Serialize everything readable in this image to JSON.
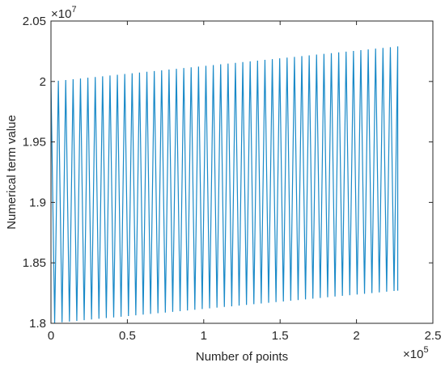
{
  "chart_data": {
    "type": "line",
    "title": "",
    "xlabel": "Number of points",
    "ylabel": "Numerical term value",
    "x_multiplier_label": {
      "base": "×10",
      "exp": "5"
    },
    "y_multiplier_label": {
      "base": "×10",
      "exp": "7"
    },
    "xlim": [
      0,
      2.5
    ],
    "ylim": [
      1.8,
      2.05
    ],
    "x_units_scale": 100000,
    "y_units_scale": 10000000,
    "xticks": [
      0,
      0.5,
      1,
      1.5,
      2,
      2.5
    ],
    "xtick_labels": [
      "0",
      "0.5",
      "1",
      "1.5",
      "2",
      "2.5"
    ],
    "yticks": [
      1.8,
      1.85,
      1.9,
      1.95,
      2,
      2.05
    ],
    "ytick_labels": [
      "1.8",
      "1.85",
      "1.9",
      "1.95",
      "2",
      "2.05"
    ],
    "grid": false,
    "line_color": "#1a8ac8",
    "series": [
      {
        "pattern": "sawtooth",
        "x_start": 0,
        "x_end": 2.27,
        "cycles": 47,
        "upper_start": 2.0,
        "upper_end": 2.029,
        "lower_start": 1.8,
        "lower_end": 1.827
      }
    ]
  }
}
